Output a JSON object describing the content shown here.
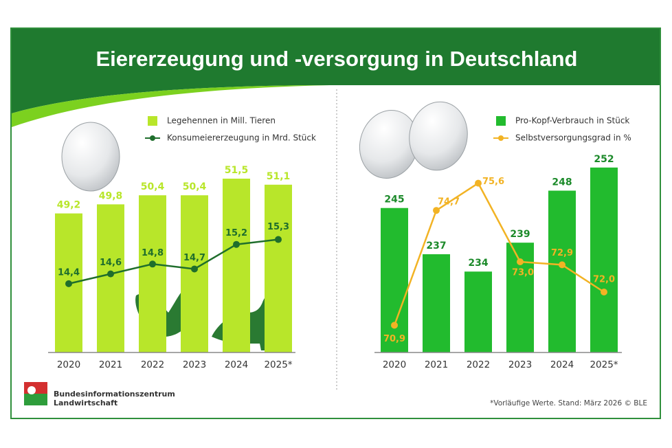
{
  "title": "Eiererzeugung und -versorgung in Deutschland",
  "chart_data": [
    {
      "type": "combo",
      "categories": [
        "2020",
        "2021",
        "2022",
        "2023",
        "2024",
        "2025*"
      ],
      "series": [
        {
          "name": "Legehennen in Mill. Tieren",
          "type": "bar",
          "color": "#b8e62a",
          "values": [
            49.2,
            49.8,
            50.4,
            50.4,
            51.5,
            51.1
          ],
          "value_labels": [
            "49,2",
            "49,8",
            "50,4",
            "50,4",
            "51,5",
            "51,1"
          ]
        },
        {
          "name": "Konsumeiererzeugung in Mrd. Stück",
          "type": "line",
          "axis": "y2",
          "color": "#1f6e2c",
          "values": [
            14.4,
            14.6,
            14.8,
            14.7,
            15.2,
            15.3
          ],
          "value_labels": [
            "14,4",
            "14,6",
            "14,8",
            "14,7",
            "15,2",
            "15,3"
          ]
        }
      ],
      "ylim": [
        40,
        53
      ],
      "y2lim": [
        13,
        17
      ]
    },
    {
      "type": "combo",
      "categories": [
        "2020",
        "2021",
        "2022",
        "2023",
        "2024",
        "2025*"
      ],
      "series": [
        {
          "name": "Pro-Kopf-Verbrauch in Stück",
          "type": "bar",
          "color": "#22bb2e",
          "values": [
            245,
            237,
            234,
            239,
            248,
            252
          ]
        },
        {
          "name": "Selbstversorgungsgrad in %",
          "type": "line",
          "axis": "y2",
          "color": "#f2b324",
          "values": [
            70.9,
            74.7,
            75.6,
            73.0,
            72.9,
            72.0
          ],
          "value_labels": [
            "70,9",
            "74,7",
            "75,6",
            "73,0",
            "72,9",
            "72,0"
          ]
        }
      ],
      "ylim": [
        220,
        254
      ],
      "y2lim": [
        70,
        76.5
      ]
    }
  ],
  "logo": [
    "Bundesinformationszentrum",
    "Landwirtschaft"
  ],
  "note": "*Vorläufige Werte. Stand: März 2026 © BLE"
}
